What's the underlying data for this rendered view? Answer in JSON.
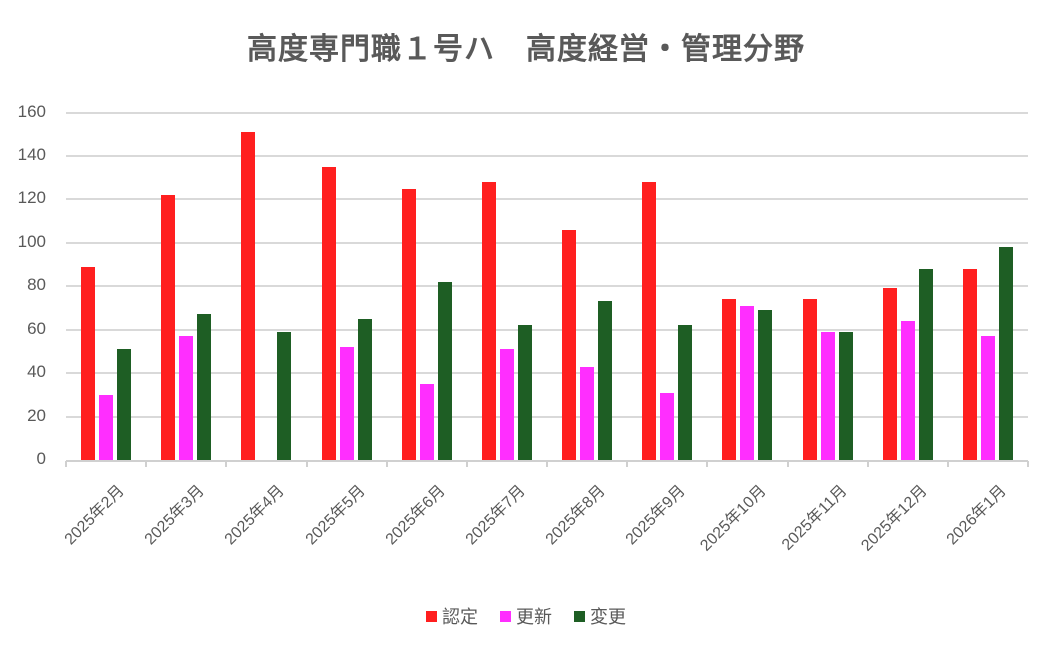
{
  "chart_data": {
    "type": "bar",
    "title": "高度専門職１号ハ　高度経営・管理分野",
    "xlabel": "",
    "ylabel": "",
    "ylim": [
      0,
      160
    ],
    "yticks": [
      0,
      20,
      40,
      60,
      80,
      100,
      120,
      140,
      160
    ],
    "grid": true,
    "legend_position": "bottom",
    "categories": [
      "2025年2月",
      "2025年3月",
      "2025年4月",
      "2025年5月",
      "2025年6月",
      "2025年7月",
      "2025年8月",
      "2025年9月",
      "2025年10月",
      "2025年11月",
      "2025年12月",
      "2026年1月"
    ],
    "series": [
      {
        "name": "認定",
        "color": "#ff1f1f",
        "values": [
          89,
          122,
          151,
          135,
          125,
          128,
          106,
          128,
          74,
          74,
          79,
          88
        ]
      },
      {
        "name": "更新",
        "color": "#ff2eff",
        "values": [
          30,
          57,
          0,
          52,
          35,
          51,
          43,
          31,
          71,
          59,
          64,
          57
        ]
      },
      {
        "name": "変更",
        "color": "#1e5e24",
        "values": [
          51,
          67,
          59,
          65,
          82,
          62,
          73,
          62,
          69,
          59,
          88,
          98
        ]
      }
    ]
  }
}
